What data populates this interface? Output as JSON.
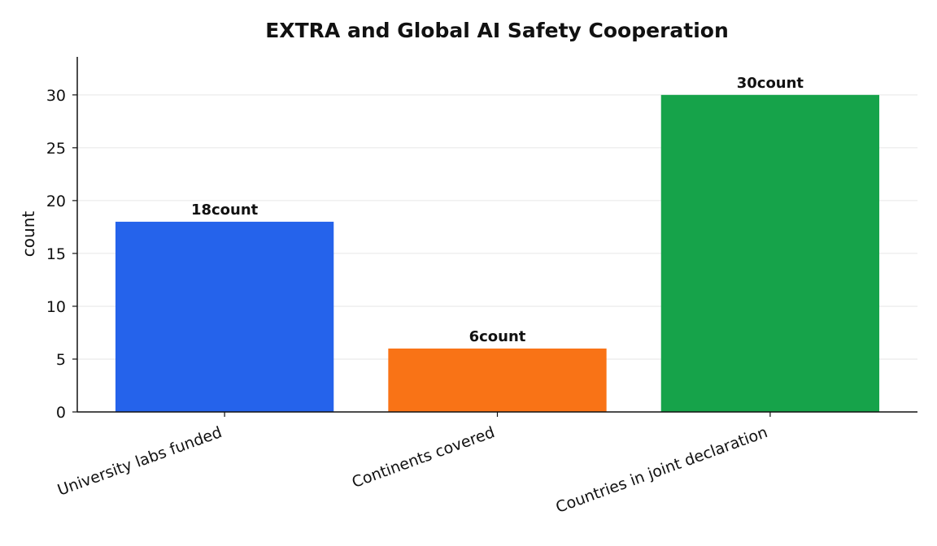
{
  "chart_data": {
    "type": "bar",
    "title": "EXTRA and Global AI Safety Cooperation",
    "xlabel": "",
    "ylabel": "count",
    "categories": [
      "University labs funded",
      "Continents covered",
      "Countries in joint declaration"
    ],
    "values": [
      18,
      6,
      30
    ],
    "data_labels": [
      "18count",
      "6count",
      "30count"
    ],
    "colors": [
      "#2563eb",
      "#f97316",
      "#16a34a"
    ],
    "ylim": [
      0,
      33.6
    ],
    "yticks": [
      0,
      5,
      10,
      15,
      20,
      25,
      30
    ],
    "grid": "horizontal"
  }
}
